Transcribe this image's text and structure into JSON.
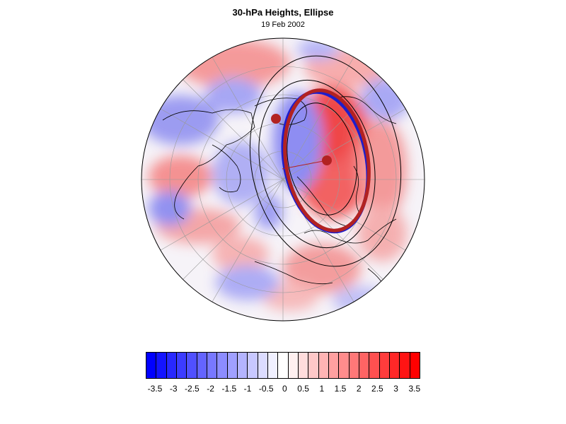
{
  "header": {
    "title": "30-hPa Heights, Ellipse",
    "date": "19 Feb 2002"
  },
  "map": {
    "projection": "polar stereographic (north pole)",
    "field": "height anomaly shading",
    "colors": {
      "ellipse_blue": "#1d1dcc",
      "ellipse_red": "#b22222",
      "center_marker": "#b22222",
      "coast": "#000000",
      "graticule": "#9a9a9a",
      "contour": "#000000"
    }
  },
  "colorbar": {
    "levels": [
      "-3.5",
      "-3",
      "-2.5",
      "-2",
      "-1.5",
      "-1",
      "-0.5",
      "0",
      "0.5",
      "1",
      "1.5",
      "2",
      "2.5",
      "3",
      "3.5"
    ],
    "colors": [
      "#0000ff",
      "#1414ff",
      "#2828ff",
      "#3c3cff",
      "#5050ff",
      "#6464ff",
      "#7878ff",
      "#8c8cff",
      "#a0a0ff",
      "#b4b4ff",
      "#c8c8ff",
      "#dcdcff",
      "#f0f0ff",
      "#ffffff",
      "#fff0f0",
      "#ffdcdc",
      "#ffc8c8",
      "#ffb4b4",
      "#ffa0a0",
      "#ff8c8c",
      "#ff7878",
      "#ff6464",
      "#ff5050",
      "#ff3c3c",
      "#ff2828",
      "#ff1414",
      "#ff0000"
    ]
  }
}
